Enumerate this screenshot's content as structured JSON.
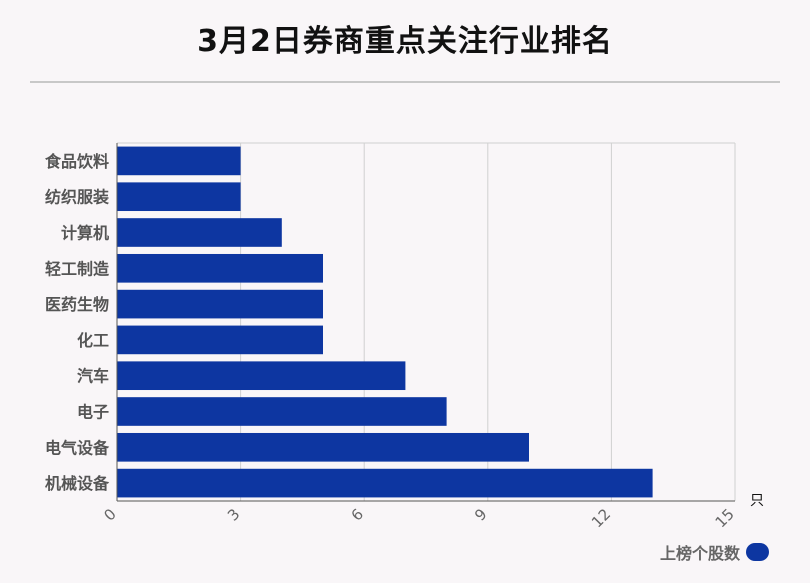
{
  "chart_data": {
    "type": "bar",
    "orientation": "horizontal",
    "title": "3月2日券商重点关注行业排名",
    "categories": [
      "食品饮料",
      "纺织服装",
      "计算机",
      "轻工制造",
      "医药生物",
      "化工",
      "汽车",
      "电子",
      "电气设备",
      "机械设备"
    ],
    "series": [
      {
        "name": "上榜个股数",
        "values": [
          3,
          3,
          4,
          5,
          5,
          5,
          7,
          8,
          10,
          13
        ]
      }
    ],
    "x_ticks": [
      "0",
      "3",
      "6",
      "9",
      "12",
      "15"
    ],
    "xlim": [
      0,
      15
    ],
    "x_unit": "只",
    "grid": true,
    "legend_position": "bottom-right",
    "bar_color": "#0d36a1"
  }
}
